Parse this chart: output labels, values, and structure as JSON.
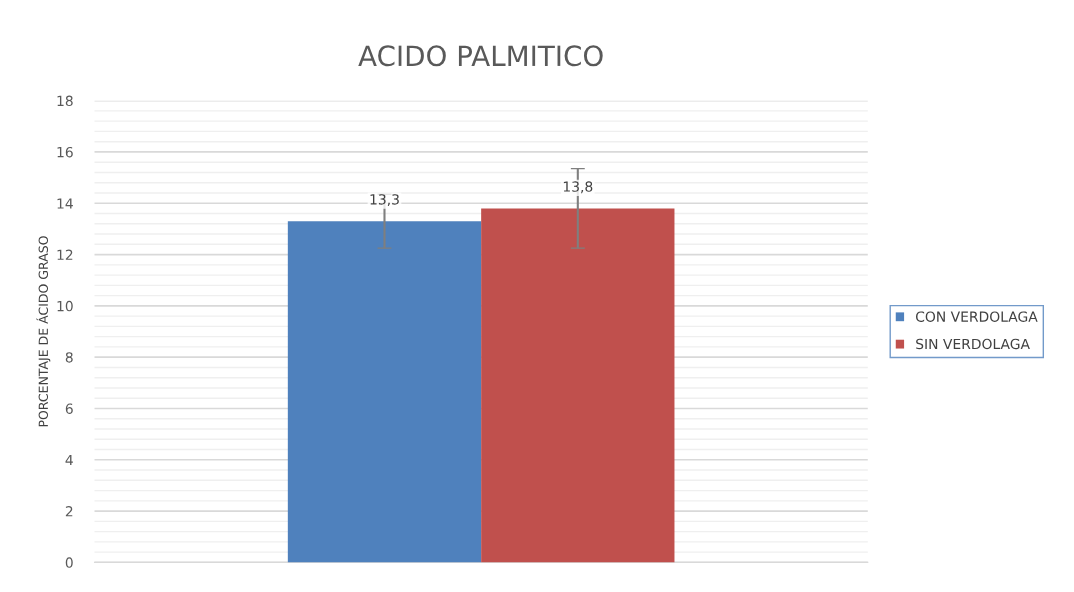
{
  "chart_data": {
    "type": "bar",
    "title": "ACIDO PALMITICO",
    "ylabel": "PORCENTAJE DE ÁCIDO GRASO",
    "categories": [
      null
    ],
    "series": [
      {
        "name": "CON VERDOLAGA",
        "color": "#4f81bd",
        "values": [
          13.3
        ],
        "errors": [
          1.05
        ],
        "value_labels": [
          "13,3"
        ]
      },
      {
        "name": "SIN VERDOLAGA",
        "color": "#c0504d",
        "values": [
          13.8
        ],
        "errors": [
          1.55
        ],
        "value_labels": [
          "13,8"
        ]
      }
    ],
    "ylim": [
      0,
      18
    ],
    "yticks": [
      0,
      2,
      4,
      6,
      8,
      10,
      12,
      14,
      16,
      18
    ],
    "grid": "y",
    "legend": "right"
  }
}
